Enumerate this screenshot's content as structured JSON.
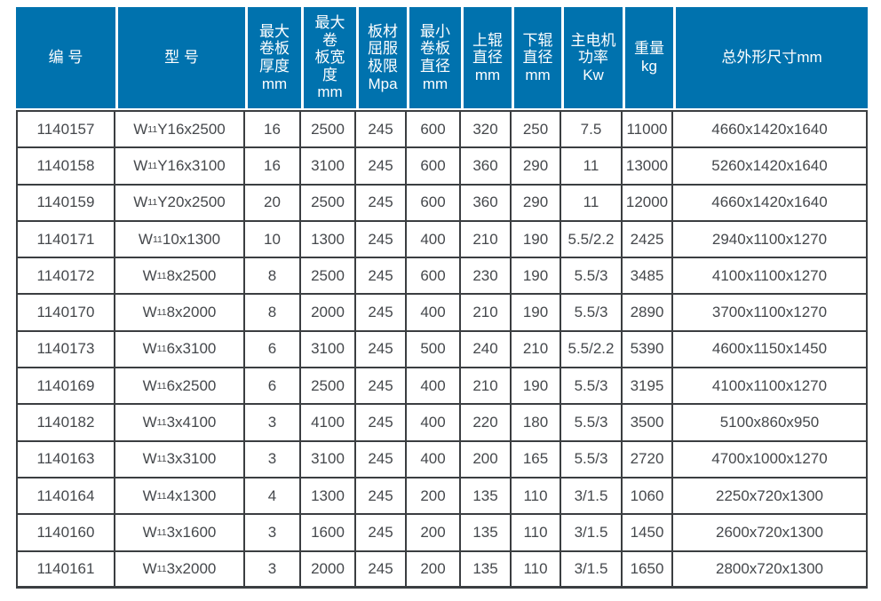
{
  "colors": {
    "header_bg": "#0072ae",
    "header_text": "#ffffff",
    "body_text": "#45484c",
    "border": "#3b3e41",
    "background": "#ffffff"
  },
  "table": {
    "headers": [
      {
        "id": "number",
        "label": "编 号"
      },
      {
        "id": "model",
        "label": "型 号"
      },
      {
        "id": "max_thickness",
        "label": "最大\n卷板\n厚度\nmm"
      },
      {
        "id": "max_width",
        "label": "最大\n卷\n板宽\n度\nmm"
      },
      {
        "id": "yield_limit",
        "label": "板材\n屈服\n极限\nMpa"
      },
      {
        "id": "min_diameter",
        "label": "最小\n卷板\n直径\nmm"
      },
      {
        "id": "top_roller",
        "label": "上辊\n直径\nmm"
      },
      {
        "id": "bottom_roller",
        "label": "下辊\n直径\nmm"
      },
      {
        "id": "motor_power",
        "label": "主电机\n功率\nKw"
      },
      {
        "id": "weight",
        "label": "重量\nkg"
      },
      {
        "id": "dimensions",
        "label": "总外形尺寸mm"
      }
    ],
    "rows": [
      {
        "id": "1140157",
        "model": {
          "base": "W",
          "sub": "11",
          "variant": "Y16x2500"
        },
        "thickness": "16",
        "width": "2500",
        "yield": "245",
        "min_diameter": "600",
        "top_roller": "320",
        "bottom_roller": "250",
        "power": "7.5",
        "weight": "11000",
        "dimensions": "4660x1420x1640"
      },
      {
        "id": "1140158",
        "model": {
          "base": "W",
          "sub": "11",
          "variant": "Y16x3100"
        },
        "thickness": "16",
        "width": "3100",
        "yield": "245",
        "min_diameter": "600",
        "top_roller": "360",
        "bottom_roller": "290",
        "power": "11",
        "weight": "13000",
        "dimensions": "5260x1420x1640"
      },
      {
        "id": "1140159",
        "model": {
          "base": "W",
          "sub": "11",
          "variant": "Y20x2500"
        },
        "thickness": "20",
        "width": "2500",
        "yield": "245",
        "min_diameter": "600",
        "top_roller": "360",
        "bottom_roller": "290",
        "power": "11",
        "weight": "12000",
        "dimensions": "4660x1420x1640"
      },
      {
        "id": "1140171",
        "model": {
          "base": "W",
          "sub": "11",
          "variant": "10x1300"
        },
        "thickness": "10",
        "width": "1300",
        "yield": "245",
        "min_diameter": "400",
        "top_roller": "210",
        "bottom_roller": "190",
        "power": "5.5/2.2",
        "weight": "2425",
        "dimensions": "2940x1100x1270"
      },
      {
        "id": "1140172",
        "model": {
          "base": "W",
          "sub": "11",
          "variant": "8x2500"
        },
        "thickness": "8",
        "width": "2500",
        "yield": "245",
        "min_diameter": "600",
        "top_roller": "230",
        "bottom_roller": "190",
        "power": "5.5/3",
        "weight": "3485",
        "dimensions": "4100x1100x1270"
      },
      {
        "id": "1140170",
        "model": {
          "base": "W",
          "sub": "11",
          "variant": "8x2000"
        },
        "thickness": "8",
        "width": "2000",
        "yield": "245",
        "min_diameter": "400",
        "top_roller": "210",
        "bottom_roller": "190",
        "power": "5.5/3",
        "weight": "2890",
        "dimensions": "3700x1100x1270"
      },
      {
        "id": "1140173",
        "model": {
          "base": "W",
          "sub": "11",
          "variant": "6x3100"
        },
        "thickness": "6",
        "width": "3100",
        "yield": "245",
        "min_diameter": "500",
        "top_roller": "240",
        "bottom_roller": "210",
        "power": "5.5/2.2",
        "weight": "5390",
        "dimensions": "4600x1150x1450"
      },
      {
        "id": "1140169",
        "model": {
          "base": "W",
          "sub": "11",
          "variant": "6x2500"
        },
        "thickness": "6",
        "width": "2500",
        "yield": "245",
        "min_diameter": "400",
        "top_roller": "210",
        "bottom_roller": "190",
        "power": "5.5/3",
        "weight": "3195",
        "dimensions": "4100x1100x1270"
      },
      {
        "id": "1140182",
        "model": {
          "base": "W",
          "sub": "11",
          "variant": "3x4100"
        },
        "thickness": "3",
        "width": "4100",
        "yield": "245",
        "min_diameter": "400",
        "top_roller": "220",
        "bottom_roller": "180",
        "power": "5.5/3",
        "weight": "3500",
        "dimensions": "5100x860x950"
      },
      {
        "id": "1140163",
        "model": {
          "base": "W",
          "sub": "11",
          "variant": "3x3100"
        },
        "thickness": "3",
        "width": "3100",
        "yield": "245",
        "min_diameter": "400",
        "top_roller": "200",
        "bottom_roller": "165",
        "power": "5.5/3",
        "weight": "2720",
        "dimensions": "4700x1000x1270"
      },
      {
        "id": "1140164",
        "model": {
          "base": "W",
          "sub": "11",
          "variant": "4x1300"
        },
        "thickness": "4",
        "width": "1300",
        "yield": "245",
        "min_diameter": "200",
        "top_roller": "135",
        "bottom_roller": "110",
        "power": "3/1.5",
        "weight": "1060",
        "dimensions": "2250x720x1300"
      },
      {
        "id": "1140160",
        "model": {
          "base": "W",
          "sub": "11",
          "variant": "3x1600"
        },
        "thickness": "3",
        "width": "1600",
        "yield": "245",
        "min_diameter": "200",
        "top_roller": "135",
        "bottom_roller": "110",
        "power": "3/1.5",
        "weight": "1450",
        "dimensions": "2600x720x1300"
      },
      {
        "id": "1140161",
        "model": {
          "base": "W",
          "sub": "11",
          "variant": "3x2000"
        },
        "thickness": "3",
        "width": "2000",
        "yield": "245",
        "min_diameter": "200",
        "top_roller": "135",
        "bottom_roller": "110",
        "power": "3/1.5",
        "weight": "1650",
        "dimensions": "2800x720x1300"
      }
    ]
  }
}
